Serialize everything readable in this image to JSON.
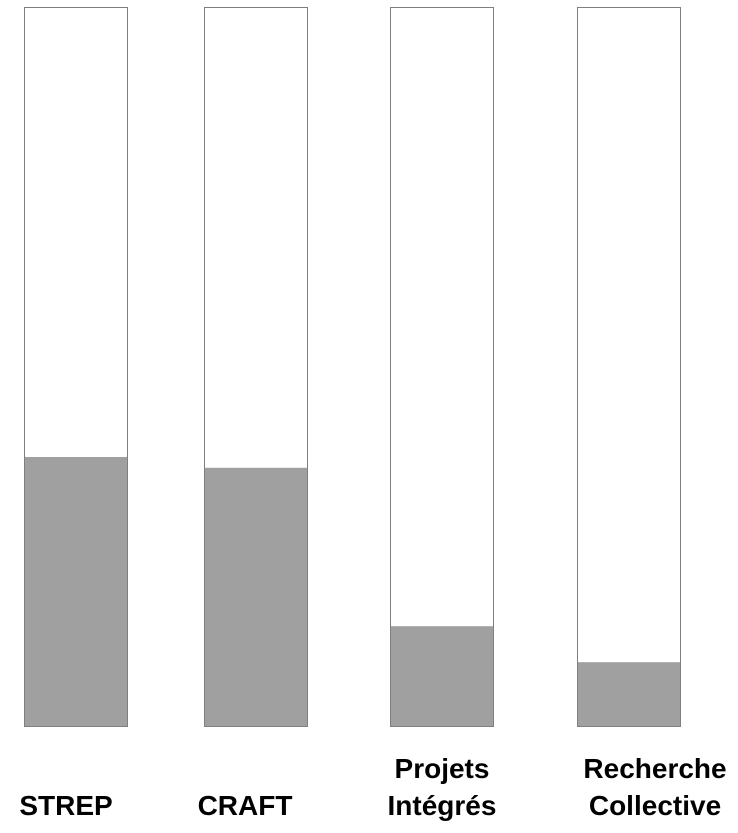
{
  "chart_data": {
    "type": "bar",
    "categories": [
      [
        "STREP"
      ],
      [
        "CRAFT"
      ],
      [
        "Projets",
        "Intégrés"
      ],
      [
        "Recherche",
        "Collective"
      ]
    ],
    "values": [
      0.375,
      0.36,
      0.14,
      0.09
    ],
    "ylim": [
      0,
      1
    ],
    "grid": false,
    "legend": "none",
    "colors": {
      "fill": "#a0a0a0",
      "track_border": "#7f7f7f",
      "background": "#ffffff",
      "text": "#000000"
    }
  }
}
